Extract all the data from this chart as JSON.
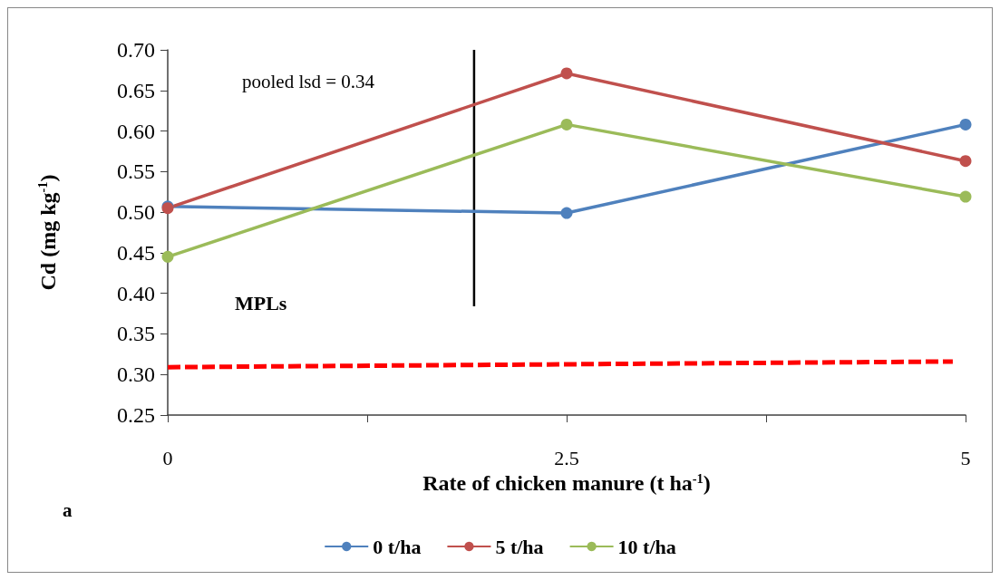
{
  "chart_data": {
    "type": "line",
    "xlabel": "Rate of chicken manure (t ha$^{-1}$)",
    "ylabel": "Cd (mg kg$^{-1}$)",
    "x": [
      0,
      2.5,
      5
    ],
    "xlim": [
      0,
      5
    ],
    "xticks": [
      0,
      {
        "value": 1.25,
        "label": null
      },
      2.5,
      {
        "value": 3.75,
        "label": null
      },
      5
    ],
    "ylim": [
      0.25,
      0.7
    ],
    "yticks": [
      0.25,
      {
        "value": 0.3,
        "label": "0.30"
      },
      0.35,
      {
        "value": 0.4,
        "label": "0.40"
      },
      0.45,
      {
        "value": 0.5,
        "label": "0.50"
      },
      0.55,
      {
        "value": 0.6,
        "label": "0.60"
      },
      0.65,
      {
        "value": 0.7,
        "label": "0.70"
      }
    ],
    "series": [
      {
        "name": "0 t/ha",
        "color": "#4f81bd",
        "values": [
          0.507,
          0.499,
          0.608
        ]
      },
      {
        "name": "5 t/ha",
        "color": "#c0504d",
        "values": [
          0.505,
          0.671,
          0.563
        ]
      },
      {
        "name": "10 t/ha",
        "color": "#9bbb59",
        "values": [
          0.445,
          0.608,
          0.519
        ]
      },
      {
        "name": "MPLs",
        "color": "#ff0000",
        "x": [
          0,
          4.92
        ],
        "values": [
          0.309,
          0.316
        ],
        "line_style": "dashed",
        "marker": "none"
      },
      {
        "color": "#000000",
        "x": [
          1.92,
          1.92
        ],
        "values": [
          0.384,
          0.7
        ],
        "marker": "none"
      }
    ],
    "annotations": [
      "pooled lsd = 0.34",
      "a"
    ],
    "marker": "circle",
    "line_style": "solid",
    "grid": false,
    "legend": "bottom"
  }
}
